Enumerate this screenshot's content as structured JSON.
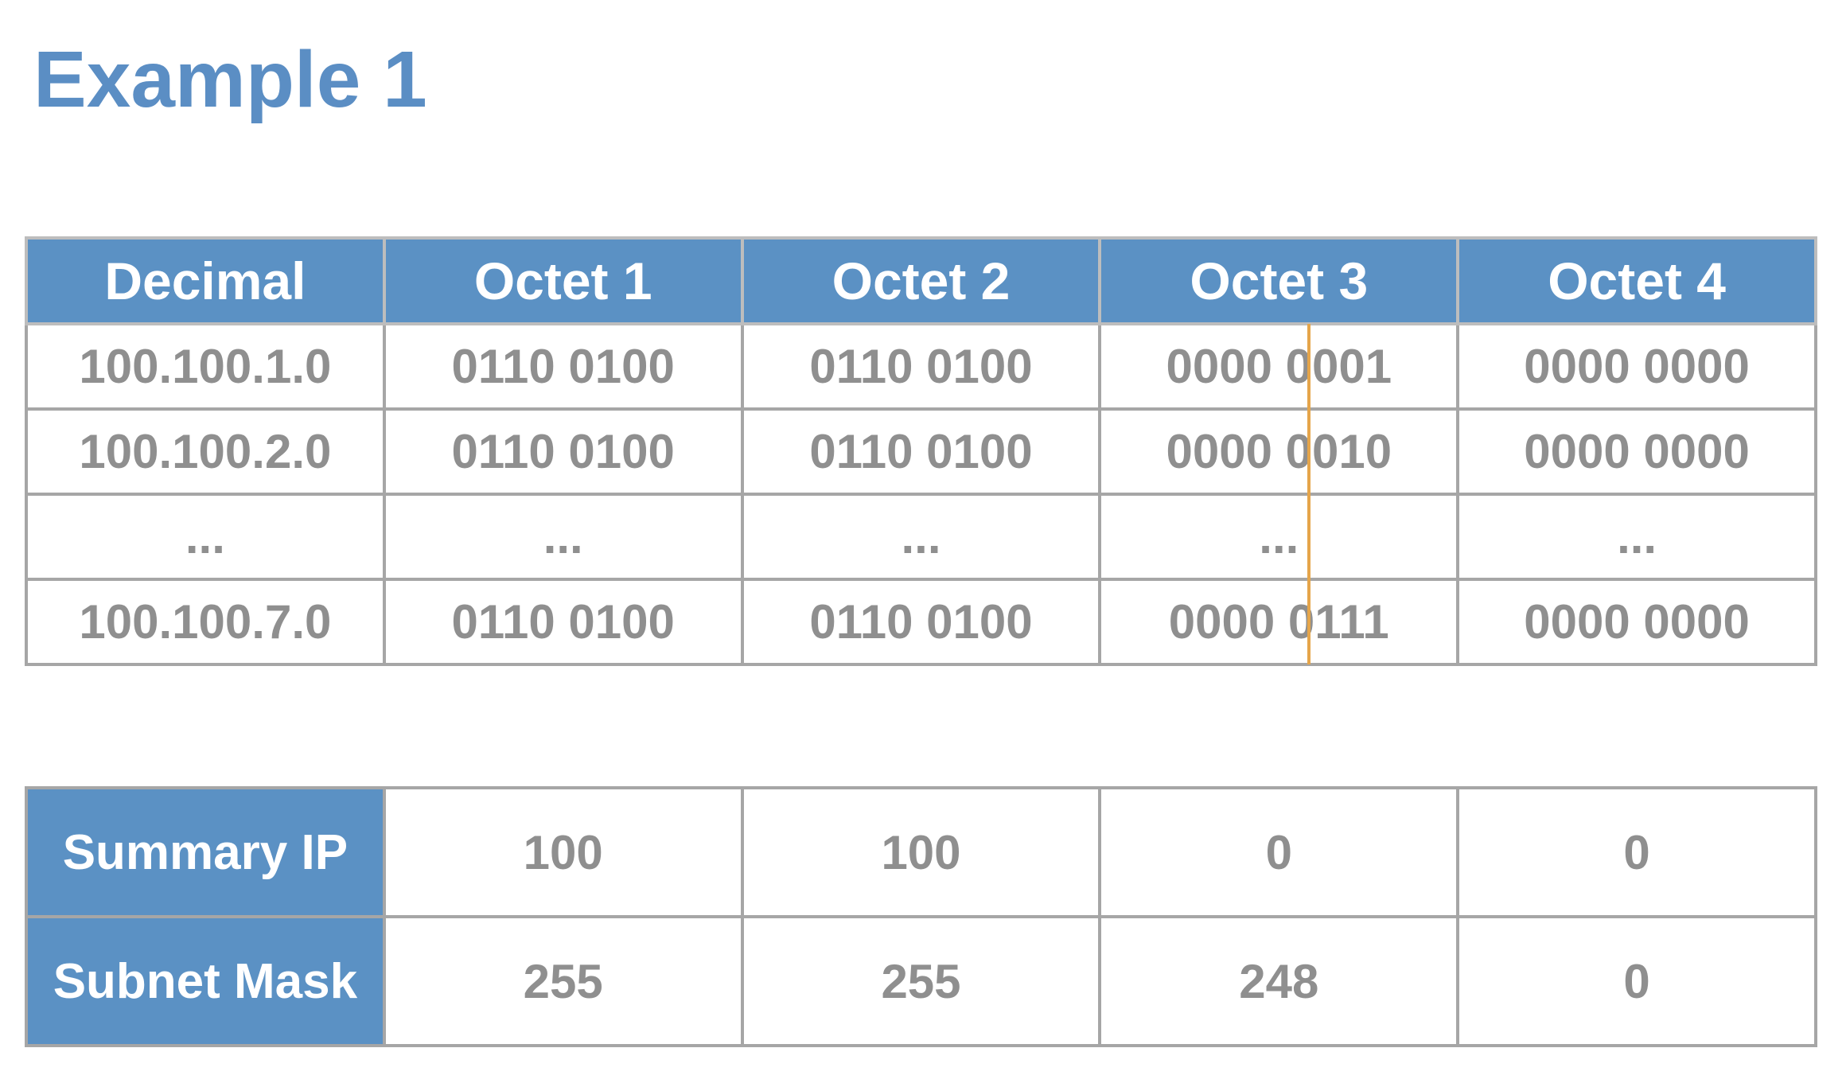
{
  "title": "Example 1",
  "octet_table": {
    "headers": [
      "Decimal",
      "Octet 1",
      "Octet 2",
      "Octet 3",
      "Octet 4"
    ],
    "rows": [
      [
        "100.100.1.0",
        "0110 0100",
        "0110 0100",
        "0000 0001",
        "0000 0000"
      ],
      [
        "100.100.2.0",
        "0110 0100",
        "0110 0100",
        "0000 0010",
        "0000 0000"
      ],
      [
        "...",
        "...",
        "...",
        "...",
        "..."
      ],
      [
        "100.100.7.0",
        "0110 0100",
        "0110 0100",
        "0000 0111",
        "0000 0000"
      ]
    ]
  },
  "summary_table": {
    "rows": [
      {
        "label": "Summary IP",
        "values": [
          "100",
          "100",
          "0",
          "0"
        ]
      },
      {
        "label": "Subnet Mask",
        "values": [
          "255",
          "255",
          "248",
          "0"
        ]
      }
    ]
  },
  "colors": {
    "title": "#5b8ec4",
    "header_fill": "#5b91c4",
    "cell_text": "#8f8f8f",
    "border": "#a6a6a6",
    "boundary_line": "#e5a54a"
  }
}
